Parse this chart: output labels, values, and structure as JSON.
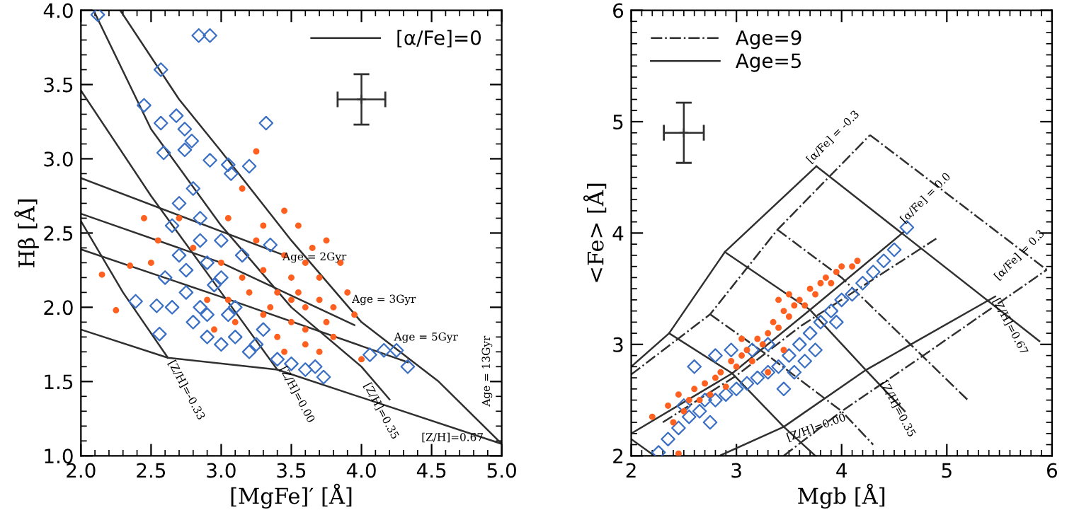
{
  "chart_data": [
    {
      "type": "scatter",
      "xlabel": "[MgFe]′ [Å]",
      "ylabel": "Hβ [Å]",
      "xlim": [
        2.0,
        5.0
      ],
      "ylim": [
        1.0,
        4.0
      ],
      "xticks": [
        {
          "value": 2.0,
          "label": "2.0"
        },
        {
          "value": 2.5,
          "label": "2.5"
        },
        {
          "value": 3.0,
          "label": "3.0"
        },
        {
          "value": 3.5,
          "label": "3.5"
        },
        {
          "value": 4.0,
          "label": "4.0"
        },
        {
          "value": 4.5,
          "label": "4.5"
        },
        {
          "value": 5.0,
          "label": "5.0"
        }
      ],
      "yticks": [
        {
          "value": 1.0,
          "label": "1.0"
        },
        {
          "value": 1.5,
          "label": "1.5"
        },
        {
          "value": 2.0,
          "label": "2.0"
        },
        {
          "value": 2.5,
          "label": "2.5"
        },
        {
          "value": 3.0,
          "label": "3.0"
        },
        {
          "value": 3.5,
          "label": "3.5"
        },
        {
          "value": 4.0,
          "label": "4.0"
        }
      ],
      "grid": false,
      "legend": "top right",
      "series": [
        {
          "type": "line",
          "name": "[α/Fe]=0",
          "color": "#303030",
          "line_style": "solid",
          "marker": "none",
          "x": [
            2.0,
            3.45
          ],
          "values": [
            2.87,
            2.35
          ]
        },
        {
          "type": "line",
          "color": "#303030",
          "line_style": "solid",
          "marker": "none",
          "x": [
            2.0,
            3.0,
            3.95
          ],
          "values": [
            2.63,
            2.3,
            1.88
          ]
        },
        {
          "type": "line",
          "color": "#303030",
          "line_style": "solid",
          "marker": "none",
          "x": [
            2.0,
            3.0,
            4.33
          ],
          "values": [
            2.39,
            2.07,
            1.63
          ]
        },
        {
          "type": "line",
          "color": "#303030",
          "line_style": "solid",
          "marker": "none",
          "x": [
            2.0,
            2.62,
            3.4,
            5.0
          ],
          "values": [
            1.85,
            1.66,
            1.58,
            1.08
          ]
        },
        {
          "type": "line",
          "color": "#303030",
          "line_style": "solid",
          "marker": "none",
          "x": [
            2.0,
            2.3,
            2.62
          ],
          "values": [
            2.58,
            2.1,
            1.66
          ]
        },
        {
          "type": "line",
          "color": "#303030",
          "line_style": "solid",
          "marker": "none",
          "x": [
            2.0,
            2.5,
            3.0,
            3.4
          ],
          "values": [
            3.46,
            2.75,
            2.1,
            1.58
          ]
        },
        {
          "type": "line",
          "color": "#303030",
          "line_style": "solid",
          "marker": "none",
          "x": [
            2.09,
            2.5,
            3.0,
            3.5,
            4.0,
            4.2
          ],
          "values": [
            4.0,
            3.2,
            2.55,
            2.0,
            1.6,
            1.38
          ]
        },
        {
          "type": "line",
          "color": "#303030",
          "line_style": "solid",
          "marker": "none",
          "x": [
            2.28,
            2.7,
            3.0,
            3.5,
            4.0,
            4.55,
            5.0
          ],
          "values": [
            4.0,
            3.4,
            3.05,
            2.45,
            1.9,
            1.5,
            1.08
          ]
        },
        {
          "type": "scatter",
          "color": "#3a6fc4",
          "marker": "diamond",
          "x": [
            2.12,
            2.84,
            2.92,
            2.57,
            2.45,
            2.68,
            2.57,
            2.74,
            3.32,
            2.59,
            2.74,
            2.79,
            2.92,
            3.05,
            3.2,
            3.07,
            2.39,
            2.54,
            2.56,
            4.06,
            4.16,
            4.25,
            4.33,
            3.73,
            3.67,
            2.8,
            2.7,
            2.65,
            2.85,
            2.7,
            2.75,
            2.8,
            2.9,
            3.0,
            3.2,
            3.4,
            3.5,
            3.6,
            2.9,
            3.0,
            2.85,
            3.1,
            3.3,
            2.65,
            2.6,
            3.0,
            3.15,
            3.35,
            2.75,
            2.95,
            3.05,
            2.85,
            2.9,
            3.1,
            3.25
          ],
          "values": [
            3.97,
            3.83,
            3.83,
            3.6,
            3.36,
            3.29,
            3.24,
            3.2,
            3.24,
            3.04,
            3.06,
            3.12,
            2.99,
            2.96,
            2.95,
            2.9,
            2.04,
            2.01,
            1.82,
            1.68,
            1.71,
            1.71,
            1.6,
            1.53,
            1.6,
            2.8,
            2.7,
            2.55,
            2.6,
            2.35,
            2.1,
            1.9,
            1.8,
            1.75,
            1.7,
            1.65,
            1.62,
            1.58,
            2.3,
            2.2,
            2.45,
            2.0,
            1.85,
            2.0,
            2.2,
            2.45,
            2.35,
            2.42,
            2.25,
            2.15,
            1.95,
            2.0,
            1.95,
            1.8,
            1.75
          ]
        },
        {
          "type": "scatter",
          "color": "#ff6020",
          "marker": "circle",
          "x": [
            2.25,
            2.15,
            2.35,
            2.45,
            2.55,
            2.5,
            3.25,
            3.15,
            3.45,
            3.55,
            3.75,
            3.9,
            3.95,
            3.8,
            3.7,
            4.0,
            3.6,
            3.5,
            3.4,
            3.3,
            3.6,
            3.7,
            3.5,
            3.4,
            3.3,
            3.2,
            3.1,
            3.0,
            2.9,
            3.6,
            3.8,
            3.65,
            3.45,
            3.25,
            3.55,
            3.75,
            3.85,
            3.35,
            3.15,
            3.05,
            2.95,
            3.5,
            3.7,
            3.6,
            3.45,
            2.7,
            2.8,
            3.05,
            3.3
          ],
          "values": [
            1.98,
            2.22,
            2.28,
            2.6,
            2.45,
            2.3,
            3.05,
            2.8,
            2.65,
            2.55,
            2.45,
            2.1,
            1.95,
            1.8,
            1.7,
            1.65,
            2.0,
            2.2,
            2.1,
            1.95,
            2.3,
            2.2,
            1.9,
            1.8,
            2.25,
            2.1,
            1.9,
            2.3,
            2.05,
            1.75,
            2.0,
            2.4,
            2.35,
            2.45,
            2.1,
            1.9,
            2.3,
            2.0,
            2.2,
            2.05,
            1.85,
            2.05,
            2.05,
            1.85,
            1.7,
            2.6,
            2.4,
            2.6,
            2.55
          ]
        },
        {
          "type": "scatter",
          "color": "#303030",
          "marker": "cross",
          "x": [
            4.0
          ],
          "values": [
            3.4
          ],
          "errors": [
            0.17
          ],
          "xerrors": [
            0.17
          ]
        }
      ],
      "annotations": [
        "Age = 2Gyr",
        "Age = 3Gyr",
        "Age = 5Gyr",
        "Age = 13Gyr",
        "[Z/H]=-0.33",
        "[Z/H]=0.00",
        "[Z/H]=0.35",
        "[Z/H]=0.67"
      ]
    },
    {
      "type": "scatter",
      "xlabel": "Mgb [Å]",
      "ylabel": "<Fe> [Å]",
      "xlim": [
        2,
        6
      ],
      "ylim": [
        2,
        6
      ],
      "xticks": [
        2,
        3,
        4,
        5,
        6
      ],
      "yticks": [
        2,
        3,
        4,
        5,
        6
      ],
      "grid": false,
      "legend": "top left",
      "series": [
        {
          "type": "line",
          "name": "Age=9",
          "color": "#303030",
          "line_style": "dashdot",
          "marker": "none",
          "x": [
            2.0,
            2.75,
            3.39,
            4.27
          ],
          "values": [
            2.73,
            3.27,
            4.03,
            4.88
          ]
        },
        {
          "type": "line",
          "name": "Age=5",
          "color": "#303030",
          "line_style": "solid",
          "marker": "none",
          "x": [
            2.0,
            2.36,
            2.89,
            3.76
          ],
          "values": [
            2.8,
            3.1,
            3.83,
            4.6
          ]
        },
        {
          "type": "line",
          "color": "#303030",
          "line_style": "solid",
          "marker": "none",
          "x": [
            3.76,
            5.88
          ],
          "values": [
            4.6,
            3.03
          ]
        },
        {
          "type": "line",
          "color": "#303030",
          "line_style": "solid",
          "marker": "none",
          "x": [
            2.0,
            2.96,
            3.7,
            4.59
          ],
          "values": [
            2.2,
            2.74,
            3.31,
            4.01
          ]
        },
        {
          "type": "line",
          "color": "#303030",
          "line_style": "solid",
          "marker": "none",
          "x": [
            2.84,
            3.45,
            4.23,
            5.46
          ],
          "values": [
            2.0,
            2.26,
            2.77,
            3.43
          ]
        },
        {
          "type": "line",
          "color": "#303030",
          "line_style": "solid",
          "marker": "none",
          "x": [
            2.89,
            3.7,
            4.23,
            4.6
          ],
          "values": [
            3.83,
            3.31,
            2.77,
            2.4
          ]
        },
        {
          "type": "line",
          "color": "#303030",
          "line_style": "solid",
          "marker": "none",
          "x": [
            2.36,
            2.96,
            3.45,
            3.75
          ],
          "values": [
            3.1,
            2.74,
            2.26,
            2.0
          ]
        },
        {
          "type": "line",
          "color": "#303030",
          "line_style": "solid",
          "marker": "none",
          "x": [
            2.0,
            2.22
          ],
          "values": [
            2.15,
            2.0
          ]
        },
        {
          "type": "line",
          "color": "#303030",
          "line_style": "dashdot",
          "marker": "none",
          "x": [
            4.27,
            5.95
          ],
          "values": [
            4.88,
            3.67
          ]
        },
        {
          "type": "line",
          "color": "#303030",
          "line_style": "dashdot",
          "marker": "none",
          "x": [
            2.3,
            3.0,
            3.62,
            4.9
          ],
          "values": [
            2.3,
            2.72,
            3.17,
            3.95
          ]
        },
        {
          "type": "line",
          "color": "#303030",
          "line_style": "dashdot",
          "marker": "none",
          "x": [
            3.45,
            4.0,
            4.7,
            5.95
          ],
          "values": [
            2.0,
            2.4,
            2.85,
            3.67
          ]
        },
        {
          "type": "line",
          "color": "#303030",
          "line_style": "dashdot",
          "marker": "none",
          "x": [
            3.39,
            4.0,
            5.2
          ],
          "values": [
            4.03,
            3.6,
            2.5
          ]
        },
        {
          "type": "line",
          "color": "#303030",
          "line_style": "dashdot",
          "marker": "none",
          "x": [
            2.75,
            3.3,
            4.0,
            4.3
          ],
          "values": [
            3.27,
            2.9,
            2.4,
            2.1
          ]
        },
        {
          "type": "scatter",
          "color": "#3a6fc4",
          "marker": "diamond",
          "x": [
            2.26,
            2.35,
            2.45,
            2.55,
            2.65,
            2.75,
            2.8,
            2.9,
            3.0,
            3.1,
            3.2,
            3.3,
            3.4,
            3.5,
            3.6,
            3.7,
            3.8,
            3.9,
            4.0,
            4.1,
            4.2,
            4.3,
            4.4,
            4.5,
            4.62,
            3.45,
            3.55,
            3.65,
            3.75,
            2.6,
            2.8,
            2.95,
            3.15,
            2.5,
            3.3,
            2.7,
            3.95
          ],
          "values": [
            2.03,
            2.15,
            2.25,
            2.35,
            2.4,
            2.3,
            2.5,
            2.55,
            2.6,
            2.65,
            2.7,
            2.75,
            2.8,
            2.9,
            3.0,
            3.1,
            3.2,
            3.3,
            3.4,
            3.45,
            3.55,
            3.65,
            3.75,
            3.85,
            4.05,
            2.6,
            2.75,
            2.85,
            2.95,
            2.8,
            2.9,
            2.95,
            2.95,
            2.45,
            3.0,
            2.5,
            3.2
          ]
        },
        {
          "type": "scatter",
          "color": "#ff6020",
          "marker": "circle",
          "x": [
            2.2,
            2.35,
            2.4,
            2.45,
            2.5,
            2.55,
            2.6,
            2.65,
            2.7,
            2.75,
            2.8,
            2.85,
            2.9,
            2.95,
            3.0,
            3.05,
            3.1,
            3.15,
            3.2,
            3.25,
            3.3,
            3.35,
            3.4,
            3.45,
            3.5,
            3.55,
            3.6,
            3.65,
            3.7,
            3.75,
            3.8,
            3.85,
            3.9,
            3.95,
            4.0,
            4.1,
            4.15,
            3.3,
            3.45,
            2.45,
            3.4,
            3.5,
            3.05
          ],
          "values": [
            2.35,
            2.45,
            2.3,
            2.55,
            2.4,
            2.5,
            2.6,
            2.5,
            2.65,
            2.55,
            2.7,
            2.75,
            2.62,
            2.85,
            2.8,
            2.9,
            2.95,
            2.85,
            3.05,
            3.0,
            3.1,
            3.2,
            3.15,
            3.3,
            3.25,
            3.35,
            3.4,
            3.35,
            3.5,
            3.45,
            3.55,
            3.6,
            3.55,
            3.65,
            3.7,
            3.7,
            3.75,
            2.75,
            2.95,
            2.02,
            3.4,
            3.45,
            3.05
          ]
        },
        {
          "type": "scatter",
          "color": "#303030",
          "marker": "cross",
          "x": [
            2.5
          ],
          "values": [
            4.9
          ],
          "errors": [
            0.27
          ],
          "xerrors": [
            0.19
          ]
        }
      ],
      "annotations": [
        "[α/Fe] = -0.3",
        "[α/Fe] = 0.0",
        "[α/Fe] = 0.3",
        "[Z/H]=0.67",
        "[Z/H]=0.35",
        "[Z/H]=0.00"
      ]
    }
  ]
}
